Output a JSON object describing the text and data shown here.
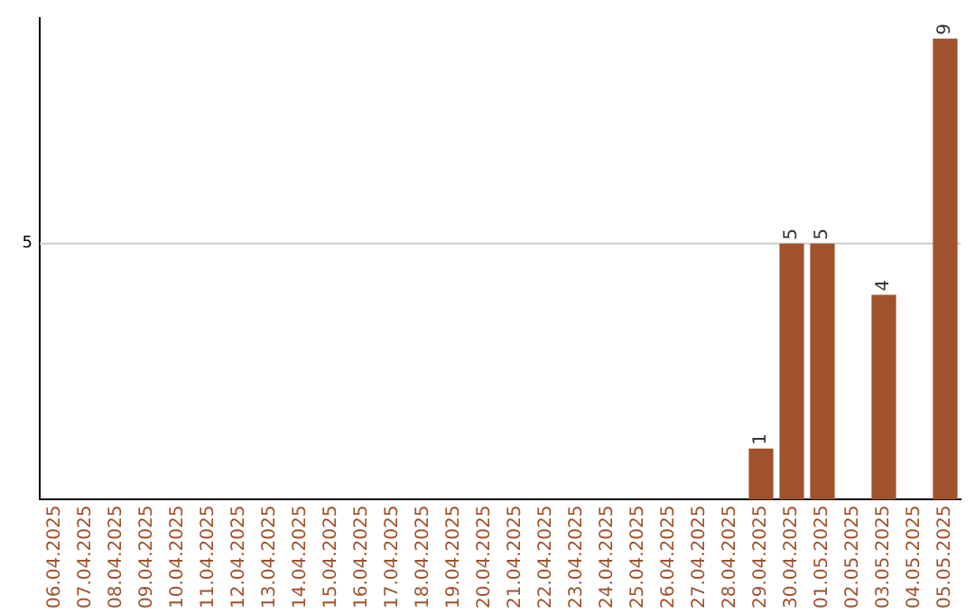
{
  "chart_data": {
    "type": "bar",
    "categories": [
      "06.04.2025",
      "07.04.2025",
      "08.04.2025",
      "09.04.2025",
      "10.04.2025",
      "11.04.2025",
      "12.04.2025",
      "13.04.2025",
      "14.04.2025",
      "15.04.2025",
      "16.04.2025",
      "17.04.2025",
      "18.04.2025",
      "19.04.2025",
      "20.04.2025",
      "21.04.2025",
      "22.04.2025",
      "23.04.2025",
      "24.04.2025",
      "25.04.2025",
      "26.04.2025",
      "27.04.2025",
      "28.04.2025",
      "29.04.2025",
      "30.04.2025",
      "01.05.2025",
      "02.05.2025",
      "03.05.2025",
      "04.05.2025",
      "05.05.2025"
    ],
    "values": [
      null,
      null,
      null,
      null,
      null,
      null,
      null,
      null,
      null,
      null,
      null,
      null,
      null,
      null,
      null,
      null,
      null,
      null,
      null,
      null,
      null,
      null,
      null,
      1,
      5,
      5,
      null,
      4,
      null,
      9
    ],
    "data_labels": true,
    "ylim": [
      0,
      9.4
    ],
    "color": "#a0522d",
    "ref_lines": [
      {
        "axis": "y",
        "value": 5,
        "label": "5",
        "color": "#cccccc"
      }
    ],
    "legend": false
  }
}
